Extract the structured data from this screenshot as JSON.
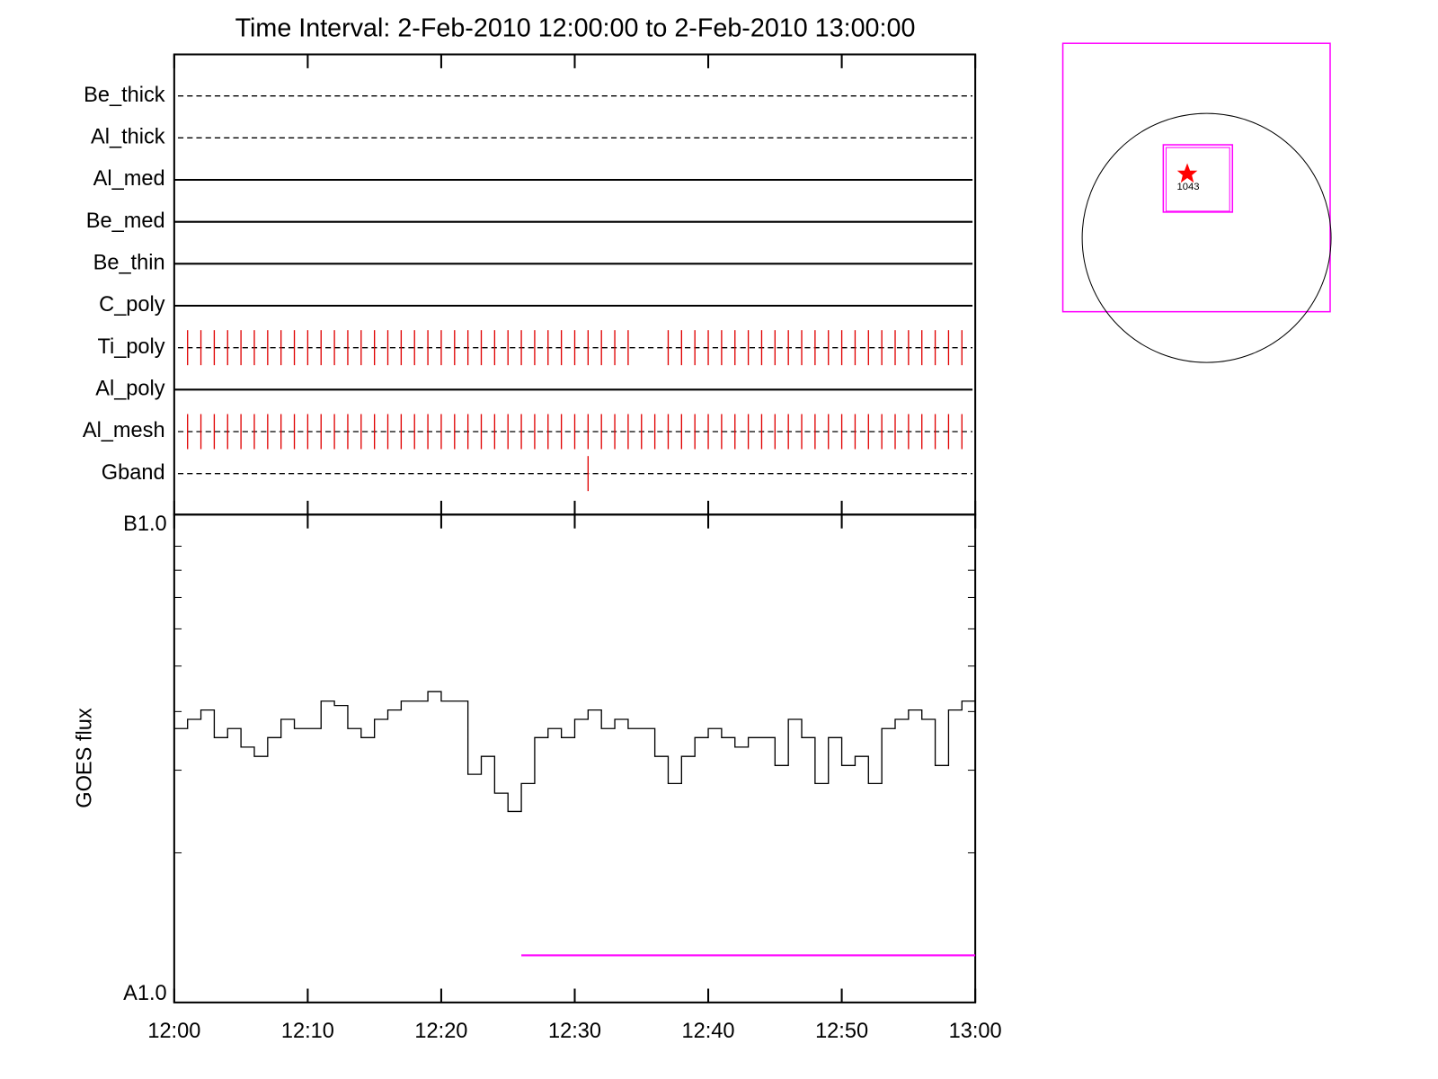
{
  "chart_data": [
    {
      "type": "event",
      "title": "Time Interval:  2-Feb-2010 12:00:00 to  2-Feb-2010 13:00:00",
      "xlim": [
        "12:00",
        "13:00"
      ],
      "channels": [
        {
          "name": "Be_thick",
          "style": "dashed",
          "events": []
        },
        {
          "name": "Al_thick",
          "style": "dashed",
          "events": []
        },
        {
          "name": "Al_med",
          "style": "solid",
          "events": []
        },
        {
          "name": "Be_med",
          "style": "solid",
          "events": []
        },
        {
          "name": "Be_thin",
          "style": "solid",
          "events": []
        },
        {
          "name": "C_poly",
          "style": "solid",
          "events": []
        },
        {
          "name": "Ti_poly",
          "style": "dashed",
          "color": "#e00000",
          "events": [
            "12:01",
            "12:02",
            "12:03",
            "12:04",
            "12:05",
            "12:06",
            "12:07",
            "12:08",
            "12:09",
            "12:10",
            "12:11",
            "12:12",
            "12:13",
            "12:14",
            "12:15",
            "12:16",
            "12:17",
            "12:18",
            "12:19",
            "12:20",
            "12:21",
            "12:22",
            "12:23",
            "12:24",
            "12:25",
            "12:26",
            "12:27",
            "12:28",
            "12:29",
            "12:30",
            "12:31",
            "12:32",
            "12:33",
            "12:34",
            "12:37",
            "12:38",
            "12:39",
            "12:40",
            "12:41",
            "12:42",
            "12:43",
            "12:44",
            "12:45",
            "12:46",
            "12:47",
            "12:48",
            "12:49",
            "12:50",
            "12:51",
            "12:52",
            "12:53",
            "12:54",
            "12:55",
            "12:56",
            "12:57",
            "12:58",
            "12:59"
          ]
        },
        {
          "name": "Al_poly",
          "style": "solid",
          "events": []
        },
        {
          "name": "Al_mesh",
          "style": "dashed",
          "color": "#e00000",
          "events": [
            "12:01",
            "12:02",
            "12:03",
            "12:04",
            "12:05",
            "12:06",
            "12:07",
            "12:08",
            "12:09",
            "12:10",
            "12:11",
            "12:12",
            "12:13",
            "12:14",
            "12:15",
            "12:16",
            "12:17",
            "12:18",
            "12:19",
            "12:20",
            "12:21",
            "12:22",
            "12:23",
            "12:24",
            "12:25",
            "12:26",
            "12:27",
            "12:28",
            "12:29",
            "12:30",
            "12:31",
            "12:32",
            "12:33",
            "12:34",
            "12:35",
            "12:36",
            "12:37",
            "12:38",
            "12:39",
            "12:40",
            "12:41",
            "12:42",
            "12:43",
            "12:44",
            "12:45",
            "12:46",
            "12:47",
            "12:48",
            "12:49",
            "12:50",
            "12:51",
            "12:52",
            "12:53",
            "12:54",
            "12:55",
            "12:56",
            "12:57",
            "12:58",
            "12:59"
          ]
        },
        {
          "name": "Gband",
          "style": "dashed",
          "color": "#e00000",
          "events": [
            "12:31"
          ]
        }
      ]
    },
    {
      "type": "line",
      "ylabel": "GOES flux",
      "log": true,
      "color": "#000000",
      "xlim": [
        "12:00",
        "13:00"
      ],
      "xticks": [
        "12:00",
        "12:10",
        "12:20",
        "12:30",
        "12:40",
        "12:50",
        "13:00"
      ],
      "ylim": [
        1e-08,
        1e-07
      ],
      "yticks": [
        {
          "value": 1e-08,
          "label": "A1.0"
        },
        {
          "value": 1e-07,
          "label": "B1.0"
        }
      ],
      "yminor_ticks": [
        2e-08,
        3e-08,
        4e-08,
        5e-08,
        6e-08,
        7e-08,
        8e-08,
        9e-08
      ],
      "x": [
        "12:00",
        "12:01",
        "12:02",
        "12:03",
        "12:04",
        "12:05",
        "12:06",
        "12:07",
        "12:08",
        "12:09",
        "12:10",
        "12:11",
        "12:12",
        "12:13",
        "12:14",
        "12:15",
        "12:16",
        "12:17",
        "12:18",
        "12:19",
        "12:20",
        "12:21",
        "12:22",
        "12:23",
        "12:24",
        "12:25",
        "12:26",
        "12:27",
        "12:28",
        "12:29",
        "12:30",
        "12:31",
        "12:32",
        "12:33",
        "12:34",
        "12:35",
        "12:36",
        "12:37",
        "12:38",
        "12:39",
        "12:40",
        "12:41",
        "12:42",
        "12:43",
        "12:44",
        "12:45",
        "12:46",
        "12:47",
        "12:48",
        "12:49",
        "12:50",
        "12:51",
        "12:52",
        "12:53",
        "12:54",
        "12:55",
        "12:56",
        "12:57",
        "12:58",
        "12:59",
        "13:00"
      ],
      "values": [
        3.68e-08,
        3.85e-08,
        4.03e-08,
        3.52e-08,
        3.68e-08,
        3.36e-08,
        3.21e-08,
        3.52e-08,
        3.85e-08,
        3.68e-08,
        3.68e-08,
        4.21e-08,
        4.12e-08,
        3.68e-08,
        3.52e-08,
        3.85e-08,
        4.03e-08,
        4.21e-08,
        4.21e-08,
        4.41e-08,
        4.21e-08,
        4.21e-08,
        2.94e-08,
        3.21e-08,
        2.68e-08,
        2.45e-08,
        2.81e-08,
        3.52e-08,
        3.68e-08,
        3.52e-08,
        3.85e-08,
        4.03e-08,
        3.68e-08,
        3.85e-08,
        3.68e-08,
        3.68e-08,
        3.21e-08,
        2.81e-08,
        3.21e-08,
        3.52e-08,
        3.68e-08,
        3.52e-08,
        3.36e-08,
        3.52e-08,
        3.52e-08,
        3.07e-08,
        3.85e-08,
        3.52e-08,
        2.81e-08,
        3.52e-08,
        3.07e-08,
        3.21e-08,
        2.81e-08,
        3.68e-08,
        3.85e-08,
        4.03e-08,
        3.85e-08,
        3.07e-08,
        4.03e-08,
        4.21e-08,
        4.41e-08
      ],
      "segment": {
        "color": "#ff00ff",
        "x": [
          "12:26",
          "13:00"
        ],
        "value": 1.21e-08
      }
    },
    {
      "type": "locator",
      "label": "1043"
    }
  ]
}
